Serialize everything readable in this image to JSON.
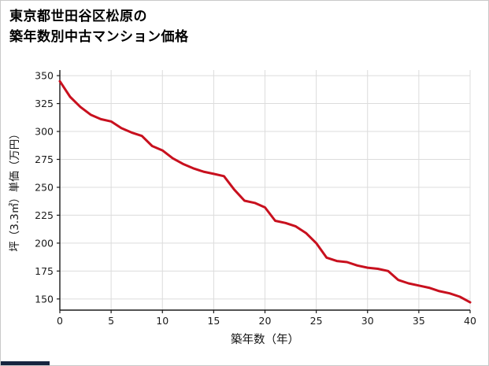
{
  "header": {
    "title_line1": "東京都世田谷区松原の",
    "title_line2": "築年数別中古マンション価格"
  },
  "chart_data": {
    "type": "line",
    "title": "東京都世田谷区松原の築年数別中古マンション価格",
    "xlabel": "築年数（年）",
    "ylabel": "坪（3.3㎡）単価（万円）",
    "x": [
      0,
      1,
      2,
      3,
      4,
      5,
      6,
      7,
      8,
      9,
      10,
      11,
      12,
      13,
      14,
      15,
      16,
      17,
      18,
      19,
      20,
      21,
      22,
      23,
      24,
      25,
      26,
      27,
      28,
      29,
      30,
      31,
      32,
      33,
      34,
      35,
      36,
      37,
      38,
      39,
      40
    ],
    "values": [
      345,
      331,
      322,
      315,
      311,
      309,
      303,
      299,
      296,
      287,
      283,
      276,
      271,
      267,
      264,
      262,
      260,
      248,
      238,
      236,
      232,
      220,
      218,
      215,
      209,
      200,
      187,
      184,
      183,
      180,
      178,
      177,
      175,
      167,
      164,
      162,
      160,
      157,
      155,
      152,
      147
    ],
    "x_ticks": [
      0,
      5,
      10,
      15,
      20,
      25,
      30,
      35,
      40
    ],
    "y_ticks": [
      150,
      175,
      200,
      225,
      250,
      275,
      300,
      325,
      350
    ],
    "xlim": [
      0,
      40
    ],
    "ylim": [
      140,
      355
    ],
    "line_color": "#c8101e",
    "grid_color": "#dcdcdc",
    "axis_color": "#1a1a1a",
    "legend": "none",
    "grid": true
  }
}
